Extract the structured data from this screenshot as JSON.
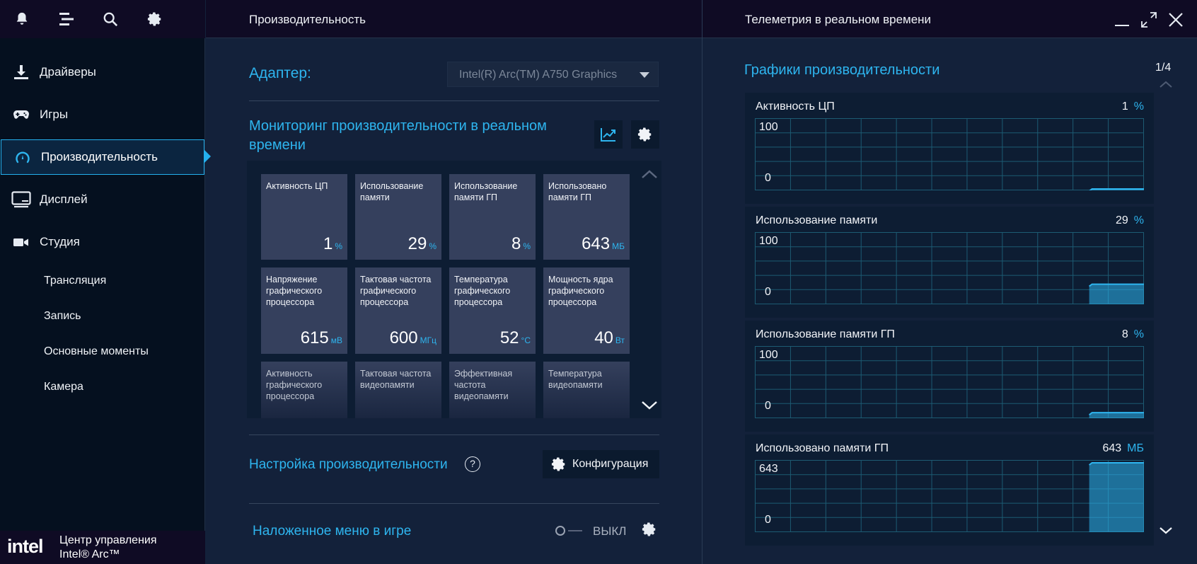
{
  "sidebar": {
    "top_icons": [
      "bell-icon",
      "menu-icon",
      "search-icon",
      "gear-icon"
    ],
    "nav": [
      {
        "label": "Драйверы",
        "icon": "download-icon"
      },
      {
        "label": "Игры",
        "icon": "gamepad-icon"
      },
      {
        "label": "Производительность",
        "icon": "gauge-icon",
        "active": true
      },
      {
        "label": "Дисплей",
        "icon": "monitor-icon"
      },
      {
        "label": "Студия",
        "icon": "camera-icon"
      }
    ],
    "sub_items": [
      "Трансляция",
      "Запись",
      "Основные моменты",
      "Камера"
    ],
    "brand": {
      "logo": "intel",
      "line1": "Центр управления",
      "line2": "Intel® Arc™"
    }
  },
  "middle": {
    "title": "Производительность",
    "adapter_label": "Адаптер:",
    "adapter_value": "Intel(R) Arc(TM) A750 Graphics",
    "monitor_title": "Мониторинг производительности в реальном времени",
    "tiles": [
      {
        "label": "Активность ЦП",
        "value": "1",
        "unit": "%"
      },
      {
        "label": "Использование памяти",
        "value": "29",
        "unit": "%"
      },
      {
        "label": "Использование памяти ГП",
        "value": "8",
        "unit": "%"
      },
      {
        "label": "Использовано памяти ГП",
        "value": "643",
        "unit": "МБ"
      },
      {
        "label": "Напряжение графического процессора",
        "value": "615",
        "unit": "мВ"
      },
      {
        "label": "Тактовая частота графического процессора",
        "value": "600",
        "unit": "МГц"
      },
      {
        "label": "Температура графического процессора",
        "value": "52",
        "unit": "°C"
      },
      {
        "label": "Мощность ядра графического процессора",
        "value": "40",
        "unit": "Вт"
      },
      {
        "label": "Активность графического процессора",
        "value": "",
        "unit": ""
      },
      {
        "label": "Тактовая частота видеопамяти",
        "value": "",
        "unit": ""
      },
      {
        "label": "Эффективная частота видеопамяти",
        "value": "",
        "unit": ""
      },
      {
        "label": "Температура видеопамяти",
        "value": "",
        "unit": ""
      }
    ],
    "perf_tuning_title": "Настройка производительности",
    "help_symbol": "?",
    "config_button": "Конфигурация",
    "overlay_title": "Наложенное меню в игре",
    "overlay_state": "ВЫКЛ"
  },
  "right": {
    "title": "Телеметрия в реальном времени",
    "graphs_title": "Графики производительности",
    "pager": "1/4",
    "graphs": [
      {
        "title": "Активность ЦП",
        "value": "1",
        "unit": "%",
        "max": "100",
        "min": "0",
        "level": 0.01,
        "recent_points": 6
      },
      {
        "title": "Использование памяти",
        "value": "29",
        "unit": "%",
        "max": "100",
        "min": "0",
        "level": 0.29,
        "recent_points": 6
      },
      {
        "title": "Использование памяти ГП",
        "value": "8",
        "unit": "%",
        "max": "100",
        "min": "0",
        "level": 0.08,
        "recent_points": 6
      },
      {
        "title": "Использовано памяти ГП",
        "value": "643",
        "unit": "МБ",
        "max": "643",
        "min": "0",
        "level": 1.0,
        "recent_points": 6
      }
    ],
    "accent_color": "#2eb5ef"
  }
}
